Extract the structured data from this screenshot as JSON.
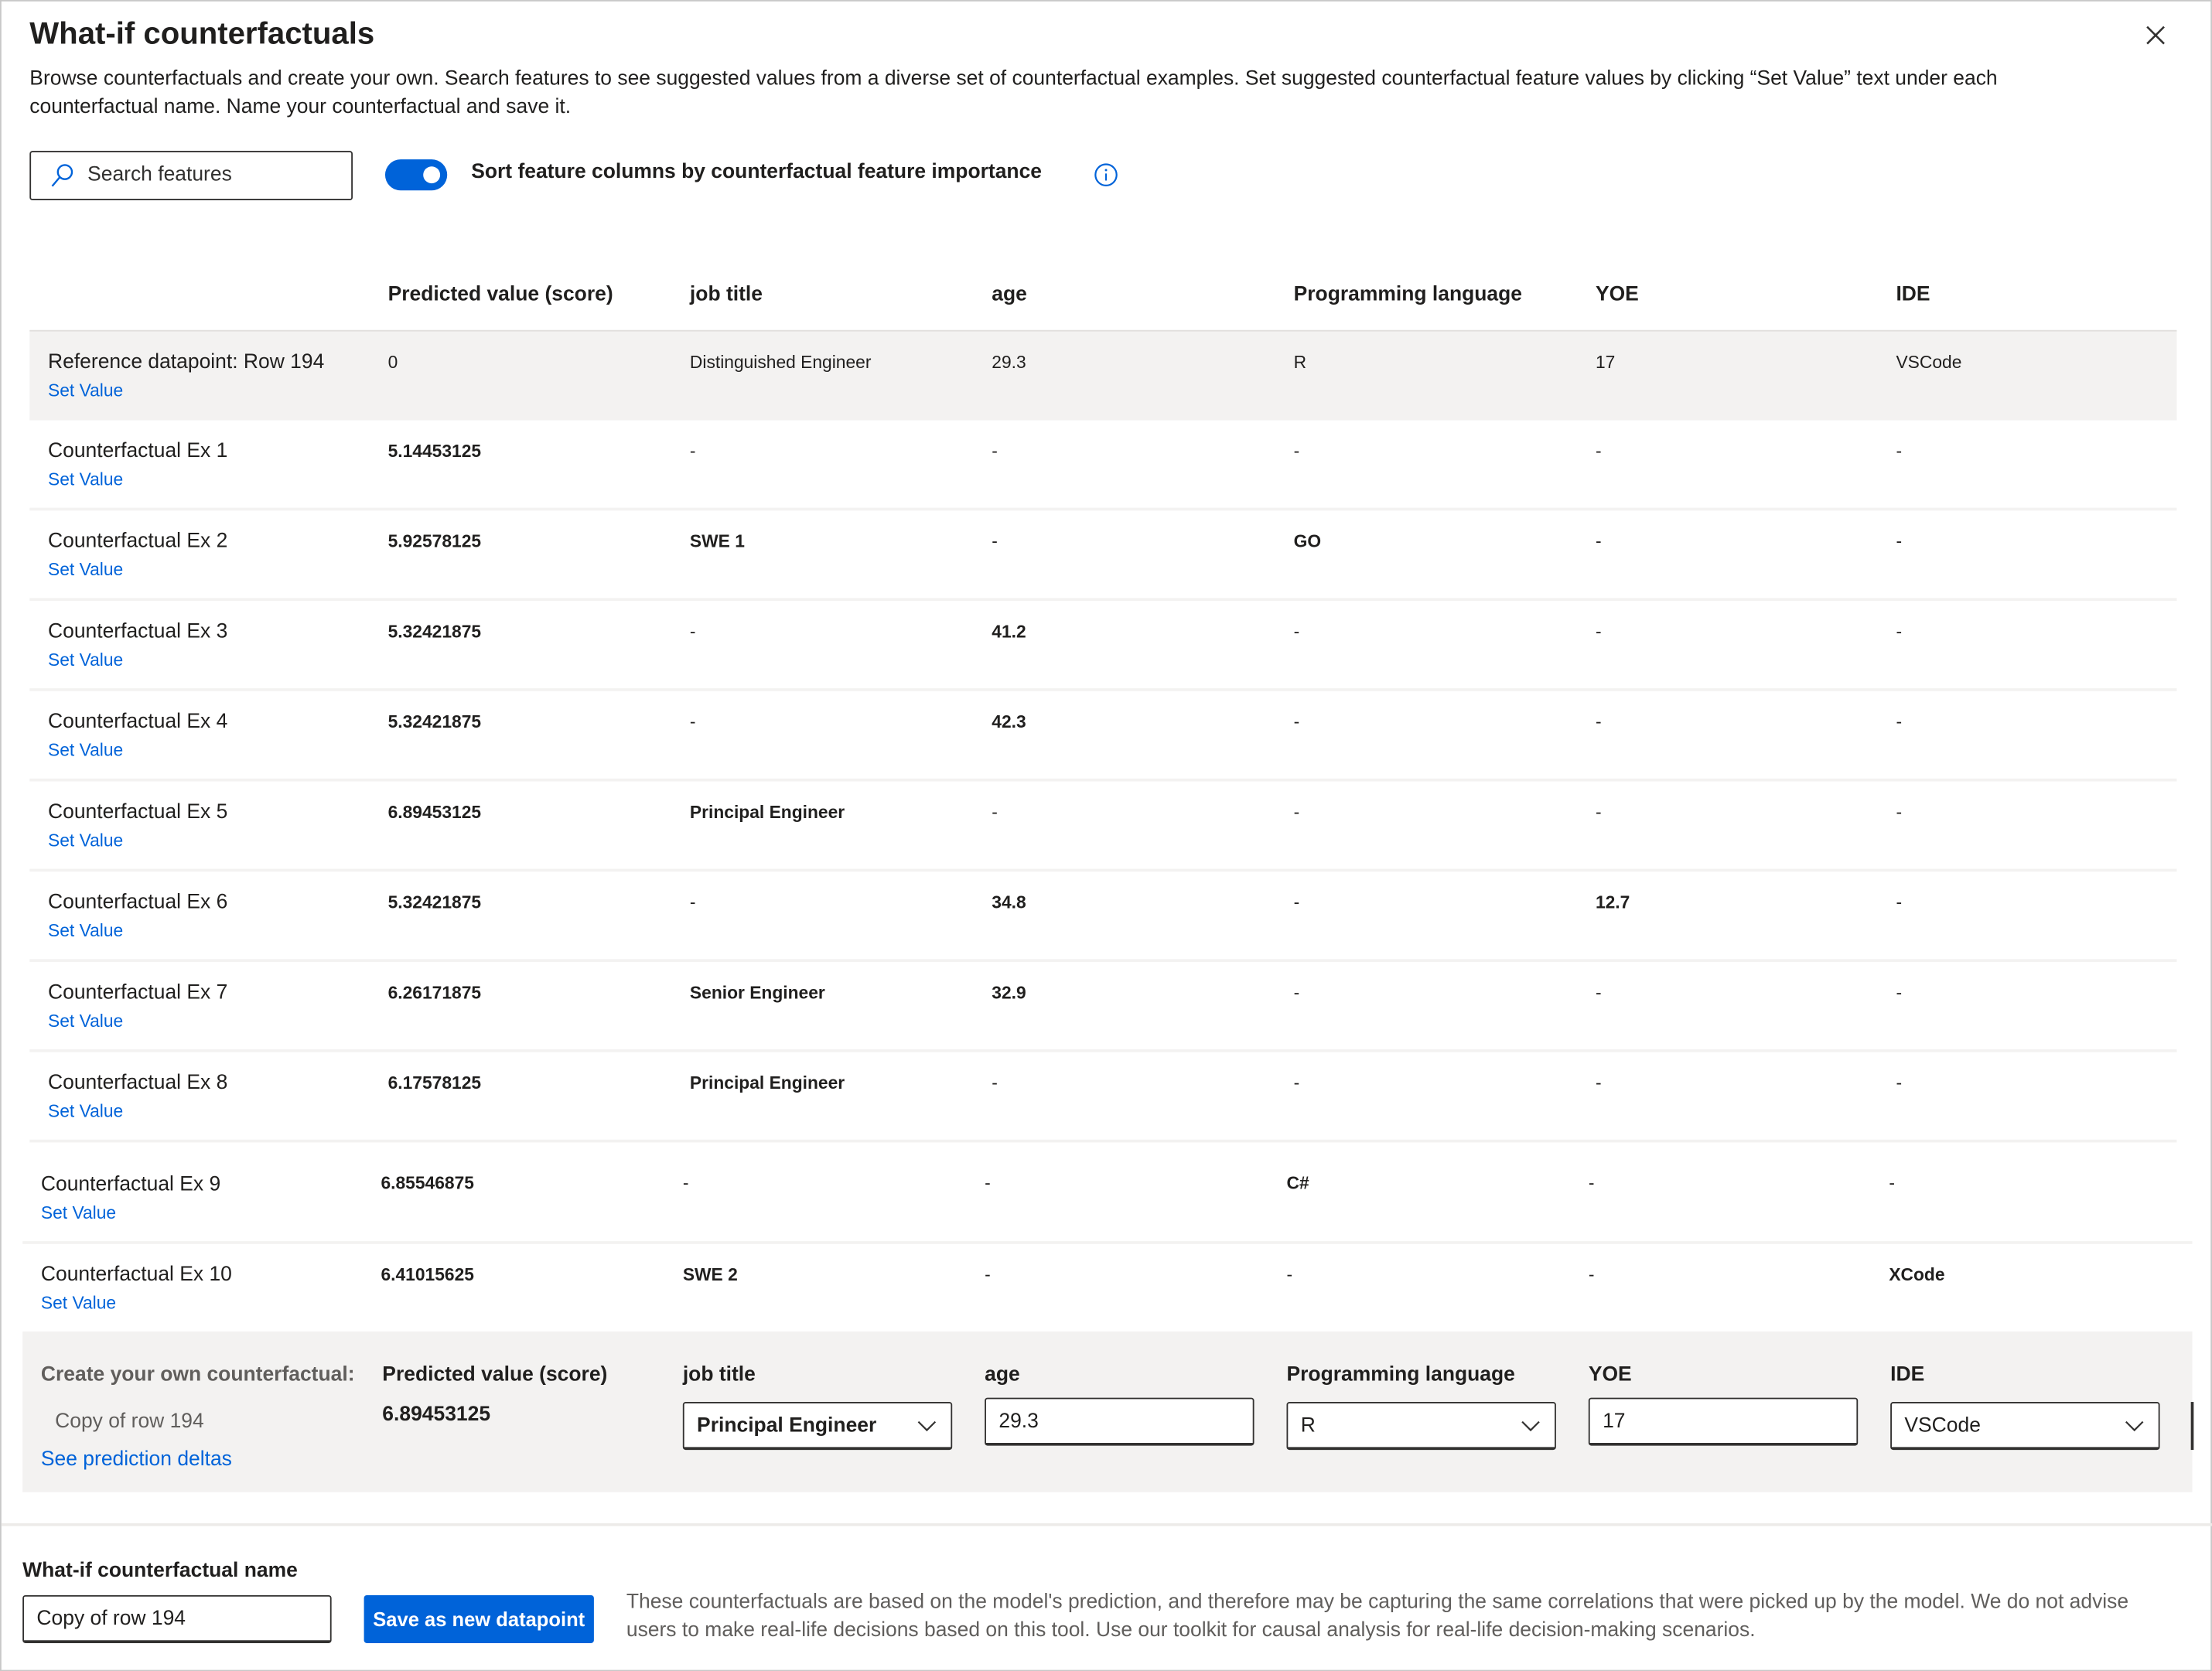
{
  "header": {
    "title": "What-if counterfactuals",
    "description": "Browse counterfactuals and create your own. Search features to see suggested values from a diverse set of counterfactual examples. Set suggested counterfactual feature values by clicking “Set Value” text under each counterfactual name. Name your counterfactual and save it."
  },
  "controls": {
    "search_placeholder": "Search features",
    "sort_toggle_label": "Sort feature columns by counterfactual feature importance",
    "sort_toggle_on": true
  },
  "table": {
    "columns": [
      "Predicted value (score)",
      "job title",
      "age",
      "Programming language",
      "YOE",
      "IDE"
    ],
    "set_value_label": "Set Value",
    "reference": {
      "name": "Reference datapoint: Row 194",
      "values": [
        "0",
        "Distinguished Engineer",
        "29.3",
        "R",
        "17",
        "VSCode"
      ]
    },
    "rows": [
      {
        "name": "Counterfactual Ex 1",
        "values": [
          "5.14453125",
          "-",
          "-",
          "-",
          "-",
          "-"
        ]
      },
      {
        "name": "Counterfactual Ex 2",
        "values": [
          "5.92578125",
          "SWE 1",
          "-",
          "GO",
          "-",
          "-"
        ]
      },
      {
        "name": "Counterfactual Ex 3",
        "values": [
          "5.32421875",
          "-",
          "41.2",
          "-",
          "-",
          "-"
        ]
      },
      {
        "name": "Counterfactual Ex 4",
        "values": [
          "5.32421875",
          "-",
          "42.3",
          "-",
          "-",
          "-"
        ]
      },
      {
        "name": "Counterfactual Ex 5",
        "values": [
          "6.89453125",
          "Principal Engineer",
          "-",
          "-",
          "-",
          "-"
        ]
      },
      {
        "name": "Counterfactual Ex 6",
        "values": [
          "5.32421875",
          "-",
          "34.8",
          "-",
          "12.7",
          "-"
        ]
      },
      {
        "name": "Counterfactual Ex 7",
        "values": [
          "6.26171875",
          "Senior Engineer",
          "32.9",
          "-",
          "-",
          "-"
        ]
      },
      {
        "name": "Counterfactual Ex 8",
        "values": [
          "6.17578125",
          "Principal Engineer",
          "-",
          "-",
          "-",
          "-"
        ]
      },
      {
        "name": "Counterfactual Ex 9",
        "values": [
          "6.85546875",
          "-",
          "-",
          "C#",
          "-",
          "-"
        ]
      },
      {
        "name": "Counterfactual Ex 10",
        "values": [
          "6.41015625",
          "SWE 2",
          "-",
          "-",
          "-",
          "XCode"
        ]
      }
    ]
  },
  "create": {
    "label": "Create your own counterfactual:",
    "copy_label": "Copy of row 194",
    "deltas_link": "See prediction deltas",
    "predicted_header": "Predicted value (score)",
    "predicted_value": "6.89453125",
    "fields": [
      {
        "label": "job title",
        "type": "dropdown",
        "value": "Principal Engineer"
      },
      {
        "label": "age",
        "type": "text",
        "value": "29.3"
      },
      {
        "label": "Programming language",
        "type": "dropdown",
        "value": "R"
      },
      {
        "label": "YOE",
        "type": "text",
        "value": "17"
      },
      {
        "label": "IDE",
        "type": "dropdown",
        "value": "VSCode"
      }
    ]
  },
  "footer": {
    "name_label": "What-if counterfactual name",
    "name_value": "Copy of row 194",
    "save_button": "Save as new datapoint",
    "disclaimer": "These counterfactuals are based on the model's prediction, and therefore may be capturing the same correlations that were picked up by the model. We do not advise users to make real-life decisions based on this tool. Use our toolkit for causal analysis for real-life decision-making scenarios."
  },
  "colors": {
    "accent": "#0063d9",
    "panel": "#f3f2f1",
    "muted_text": "#605e5c"
  }
}
